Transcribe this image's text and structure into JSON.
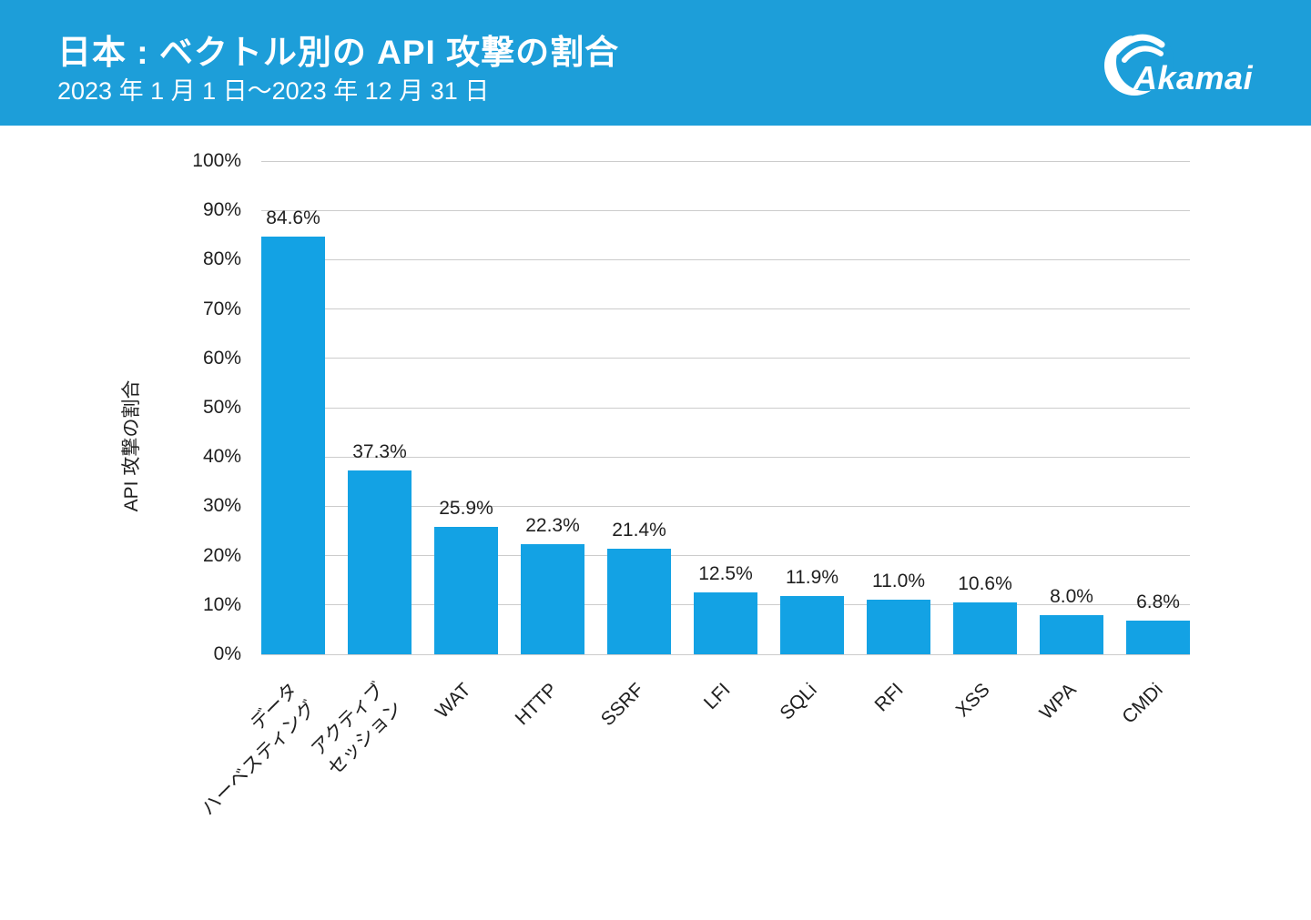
{
  "header": {
    "title": "日本 : ベクトル別の API 攻撃の割合",
    "subtitle": "2023 年 1 月 1 日～2023 年 12 月 31 日",
    "logo_text": "Akamai"
  },
  "chart_data": {
    "type": "bar",
    "title": "日本 : ベクトル別の API 攻撃の割合",
    "subtitle": "2023 年 1 月 1 日～2023 年 12 月 31 日",
    "xlabel": "",
    "ylabel": "API 攻撃の割合",
    "ylim": [
      0,
      100
    ],
    "ytick_step": 10,
    "ytick_labels": [
      "0%",
      "10%",
      "20%",
      "30%",
      "40%",
      "50%",
      "60%",
      "70%",
      "80%",
      "90%",
      "100%"
    ],
    "grid": "horizontal",
    "legend": false,
    "categories": [
      "データ\nハーベスティング",
      "アクティブ\nセッション",
      "WAT",
      "HTTP",
      "SSRF",
      "LFI",
      "SQLi",
      "RFI",
      "XSS",
      "WPA",
      "CMDi"
    ],
    "values": [
      84.6,
      37.3,
      25.9,
      22.3,
      21.4,
      12.5,
      11.9,
      11.0,
      10.6,
      8.0,
      6.8
    ],
    "value_labels": [
      "84.6%",
      "37.3%",
      "25.9%",
      "22.3%",
      "21.4%",
      "12.5%",
      "11.9%",
      "11.0%",
      "10.6%",
      "8.0%",
      "6.8%"
    ]
  },
  "colors": {
    "header_bg": "#1d9ed9",
    "bar": "#13a2e4",
    "grid": "#cccccc",
    "text": "#1f1f1f",
    "header_text": "#ffffff"
  }
}
